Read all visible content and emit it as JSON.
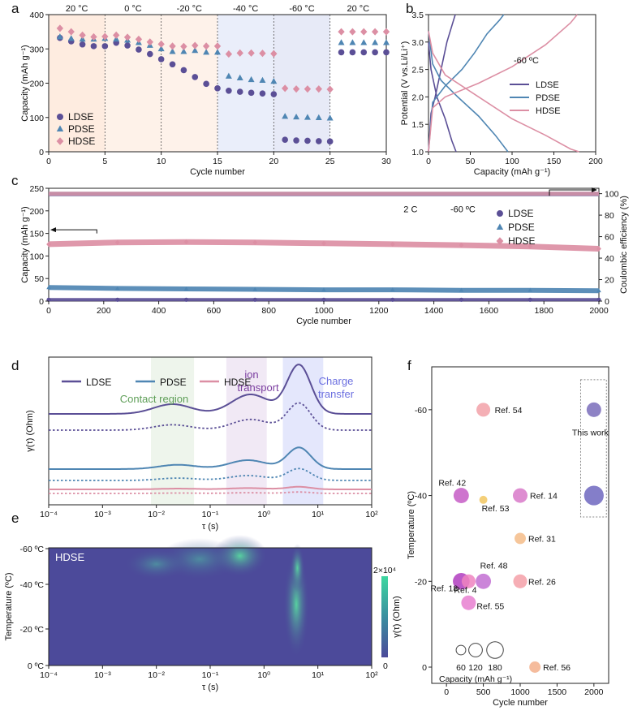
{
  "colors": {
    "LDSE": "#5b4f96",
    "PDSE": "#4f86b3",
    "HDSE": "#dc8fa4",
    "heat_low": "#4c4a9a",
    "heat_high": "#3ed7a0"
  },
  "chart_data": [
    {
      "panel": "a",
      "type": "scatter",
      "xlabel": "Cycle number",
      "ylabel": "Capacity (mAh g⁻¹)",
      "xlim": [
        0,
        30
      ],
      "ylim": [
        0,
        400
      ],
      "xticks": [
        "0",
        "5",
        "10",
        "15",
        "20",
        "25",
        "30"
      ],
      "yticks": [
        "0",
        "100",
        "200",
        "300",
        "400"
      ],
      "segment_labels": [
        "20 °C",
        "0 °C",
        "-20 °C",
        "-40 °C",
        "-60 °C",
        "20 °C"
      ],
      "x": [
        1,
        2,
        3,
        4,
        5,
        6,
        7,
        8,
        9,
        10,
        11,
        12,
        13,
        14,
        15,
        16,
        17,
        18,
        19,
        20,
        21,
        22,
        23,
        24,
        25,
        26,
        27,
        28,
        29,
        30
      ],
      "series": [
        {
          "name": "LDSE",
          "marker": "circle",
          "values": [
            332,
            322,
            313,
            308,
            308,
            318,
            310,
            298,
            285,
            270,
            255,
            238,
            218,
            198,
            185,
            178,
            175,
            172,
            170,
            168,
            35,
            33,
            32,
            31,
            30,
            290,
            290,
            290,
            290,
            290
          ]
        },
        {
          "name": "PDSE",
          "marker": "triangle",
          "values": [
            335,
            330,
            328,
            328,
            330,
            328,
            325,
            318,
            310,
            300,
            292,
            292,
            295,
            290,
            290,
            220,
            215,
            210,
            208,
            205,
            103,
            101,
            100,
            99,
            98,
            318,
            318,
            318,
            318,
            318
          ]
        },
        {
          "name": "HDSE",
          "marker": "diamond",
          "values": [
            360,
            350,
            340,
            335,
            336,
            340,
            334,
            328,
            320,
            314,
            308,
            307,
            310,
            308,
            308,
            285,
            288,
            288,
            287,
            286,
            185,
            183,
            183,
            183,
            182,
            350,
            350,
            350,
            350,
            350
          ]
        }
      ]
    },
    {
      "panel": "b",
      "type": "line",
      "xlabel": "Capacity (mAh g⁻¹)",
      "ylabel": "Potential (V vs.Li/Li⁺)",
      "xlim": [
        0,
        200
      ],
      "ylim": [
        1.0,
        3.5
      ],
      "xticks": [
        "0",
        "50",
        "100",
        "150",
        "200"
      ],
      "yticks": [
        "1.0",
        "1.5",
        "2.0",
        "2.5",
        "3.0",
        "3.5"
      ],
      "legend_title": "-60 ºC",
      "series": [
        {
          "name": "LDSE",
          "charge": [
            [
              0,
              1.0
            ],
            [
              3,
              1.7
            ],
            [
              8,
              2.0
            ],
            [
              15,
              2.5
            ],
            [
              22,
              3.0
            ],
            [
              30,
              3.4
            ],
            [
              32,
              3.5
            ]
          ],
          "discharge": [
            [
              0,
              3.0
            ],
            [
              3,
              2.5
            ],
            [
              10,
              2.0
            ],
            [
              20,
              1.6
            ],
            [
              28,
              1.2
            ],
            [
              33,
              1.0
            ]
          ]
        },
        {
          "name": "PDSE",
          "charge": [
            [
              0,
              1.0
            ],
            [
              5,
              1.9
            ],
            [
              20,
              2.2
            ],
            [
              40,
              2.5
            ],
            [
              55,
              2.8
            ],
            [
              70,
              3.15
            ],
            [
              85,
              3.4
            ],
            [
              90,
              3.5
            ]
          ],
          "discharge": [
            [
              0,
              3.2
            ],
            [
              5,
              2.6
            ],
            [
              15,
              2.3
            ],
            [
              35,
              2.0
            ],
            [
              60,
              1.65
            ],
            [
              80,
              1.3
            ],
            [
              95,
              1.0
            ]
          ]
        },
        {
          "name": "HDSE",
          "charge": [
            [
              0,
              1.0
            ],
            [
              5,
              1.8
            ],
            [
              20,
              2.0
            ],
            [
              60,
              2.25
            ],
            [
              100,
              2.55
            ],
            [
              140,
              2.95
            ],
            [
              170,
              3.35
            ],
            [
              178,
              3.5
            ]
          ],
          "discharge": [
            [
              0,
              3.2
            ],
            [
              5,
              2.8
            ],
            [
              20,
              2.4
            ],
            [
              60,
              2.0
            ],
            [
              100,
              1.6
            ],
            [
              140,
              1.3
            ],
            [
              170,
              1.05
            ],
            [
              180,
              1.0
            ]
          ]
        }
      ]
    },
    {
      "panel": "c",
      "type": "scatter",
      "xlabel": "Cycle number",
      "ylabel": "Capacity (mAh g⁻¹)",
      "ylabel2": "Coulombic efficiency (%)",
      "xlim": [
        0,
        2000
      ],
      "ylim": [
        0,
        250
      ],
      "ylim2": [
        0,
        105
      ],
      "xticks": [
        "0",
        "200",
        "400",
        "600",
        "800",
        "1000",
        "1200",
        "1400",
        "1600",
        "1800",
        "2000"
      ],
      "yticks": [
        "0",
        "50",
        "100",
        "150",
        "200",
        "250"
      ],
      "yticks2": [
        "0",
        "20",
        "40",
        "60",
        "80",
        "100"
      ],
      "annotations": [
        "2 C",
        "-60 ºC"
      ],
      "x": [
        0,
        250,
        500,
        750,
        1000,
        1250,
        1500,
        1750,
        2000
      ],
      "series": [
        {
          "name": "LDSE",
          "marker": "circle",
          "capacity": [
            3,
            3,
            3,
            3,
            3,
            3,
            3,
            3,
            3
          ],
          "ce": [
            99.5,
            99.5,
            99.5,
            99.5,
            99.5,
            99.5,
            99.5,
            99.5,
            99.5
          ]
        },
        {
          "name": "PDSE",
          "marker": "triangle",
          "capacity": [
            30,
            28,
            27,
            26,
            25,
            25,
            24,
            24,
            23
          ],
          "ce": [
            99.8,
            99.8,
            99.8,
            99.8,
            99.8,
            99.8,
            99.8,
            99.8,
            99.8
          ]
        },
        {
          "name": "HDSE",
          "marker": "diamond",
          "capacity": [
            126,
            130,
            131,
            130,
            128,
            126,
            124,
            121,
            116
          ],
          "ce": [
            99.9,
            99.9,
            99.9,
            99.9,
            99.9,
            99.9,
            99.9,
            99.9,
            99.9
          ]
        }
      ]
    },
    {
      "panel": "d",
      "type": "line",
      "xlabel": "τ (s)",
      "ylabel": "γ(τ) (Ohm)",
      "xscale": "log",
      "xticks": [
        "10⁻⁴",
        "10⁻³",
        "10⁻²",
        "10⁻¹",
        "10⁰",
        "10¹",
        "10²"
      ],
      "regions": [
        "Contact region",
        "ion transport",
        "Charge transfer"
      ],
      "series": [
        {
          "name": "LDSE",
          "peaks_log_tau": [
            -1.7,
            -0.25,
            0.65
          ],
          "peak_heights": [
            0.2,
            0.4,
            1.0
          ]
        },
        {
          "name": "PDSE",
          "peaks_log_tau": [
            -1.6,
            -0.3,
            0.65
          ],
          "peak_heights": [
            0.12,
            0.25,
            0.6
          ]
        },
        {
          "name": "HDSE",
          "peaks_log_tau": [
            -1.6,
            -0.3,
            0.65
          ],
          "peak_heights": [
            0.06,
            0.1,
            0.2
          ]
        }
      ]
    },
    {
      "panel": "e",
      "type": "heatmap",
      "xlabel": "τ (s)",
      "ylabel": "Temperature (ºC)",
      "xscale": "log",
      "xticks": [
        "10⁻⁴",
        "10⁻³",
        "10⁻²",
        "10⁻¹",
        "10⁰",
        "10¹",
        "10²"
      ],
      "yticks": [
        "-60 ºC",
        "-40 ºC",
        "-20 ºC",
        "0 ºC"
      ],
      "label": "HDSE",
      "colorbar_label": "γ(τ) (Ohm)",
      "colorbar_max": "2×10⁴",
      "colorbar_min": "0"
    },
    {
      "panel": "f",
      "type": "scatter",
      "xlabel": "Cycle number",
      "ylabel": "Temperature (ºC)",
      "xlim": [
        -200,
        2200
      ],
      "ylim": [
        0,
        -70
      ],
      "xticks": [
        "0",
        "500",
        "1000",
        "1500",
        "2000"
      ],
      "yticks": [
        "0",
        "-20",
        "-40",
        "-60"
      ],
      "size_legend_title": "Capacity (mAh g⁻¹)",
      "size_legend": [
        "60",
        "120",
        "180"
      ],
      "highlight_label": "This work",
      "points": [
        {
          "label": "Ref. 54",
          "x": 500,
          "y": -60,
          "capacity": 90,
          "color": "#f2a1a8"
        },
        {
          "label": "Ref. 42",
          "x": 200,
          "y": -40,
          "capacity": 110,
          "color": "#c65cc6"
        },
        {
          "label": "Ref. 53",
          "x": 500,
          "y": -39,
          "capacity": 30,
          "color": "#f2c760"
        },
        {
          "label": "Ref. 14",
          "x": 1000,
          "y": -40,
          "capacity": 100,
          "color": "#d879c9"
        },
        {
          "label": "Ref. 31",
          "x": 1000,
          "y": -30,
          "capacity": 60,
          "color": "#f5bc88"
        },
        {
          "label": "Ref. 48",
          "x": 500,
          "y": -20,
          "capacity": 110,
          "color": "#c26fd2"
        },
        {
          "label": "Ref. 18",
          "x": 200,
          "y": -20,
          "capacity": 130,
          "color": "#b03dc0"
        },
        {
          "label": "Ref. 4",
          "x": 300,
          "y": -20,
          "capacity": 90,
          "color": "#ee84c0"
        },
        {
          "label": "Ref. 26",
          "x": 1000,
          "y": -20,
          "capacity": 90,
          "color": "#f4a0a8"
        },
        {
          "label": "Ref. 55",
          "x": 300,
          "y": -15,
          "capacity": 100,
          "color": "#e77fd0"
        },
        {
          "label": "Ref. 56",
          "x": 1200,
          "y": 0,
          "capacity": 60,
          "color": "#f3b08c"
        },
        {
          "label": "",
          "x": 2000,
          "y": -60,
          "capacity": 100,
          "color": "#7a6dbb"
        },
        {
          "label": "",
          "x": 2000,
          "y": -40,
          "capacity": 180,
          "color": "#6f67c0"
        }
      ]
    }
  ]
}
